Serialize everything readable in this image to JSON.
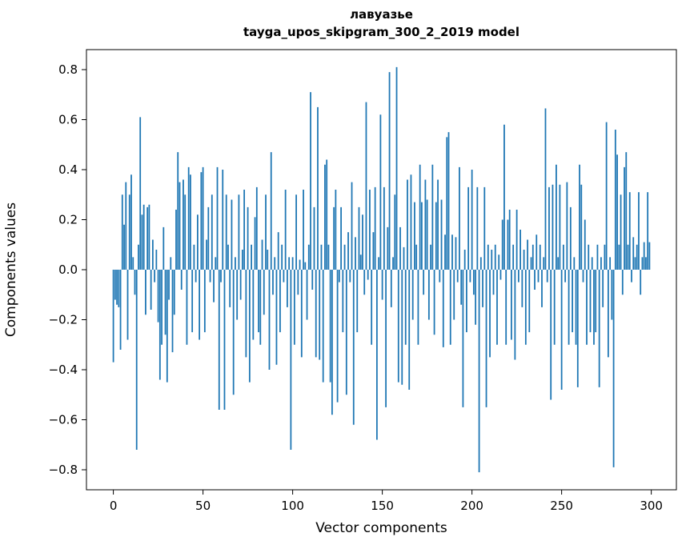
{
  "chart_data": {
    "type": "bar",
    "title": "лавуазье",
    "subtitle": "tayga_upos_skipgram_300_2_2019 model",
    "xlabel": "Vector components",
    "ylabel": "Components values",
    "bar_color": "#1f77b4",
    "grid": false,
    "legend": "none",
    "xlim": [
      -15,
      314
    ],
    "ylim": [
      -0.88,
      0.88
    ],
    "xticks": [
      0,
      50,
      100,
      150,
      200,
      250,
      300
    ],
    "yticks": [
      -0.8,
      -0.6,
      -0.4,
      -0.2,
      0.0,
      0.2,
      0.4,
      0.6,
      0.8
    ],
    "yticklabels": [
      "−0.8",
      "−0.6",
      "−0.4",
      "−0.2",
      "0.0",
      "0.2",
      "0.4",
      "0.6",
      "0.8"
    ],
    "x_is_index": true,
    "values": [
      -0.37,
      -0.12,
      -0.14,
      -0.15,
      -0.32,
      0.3,
      0.18,
      0.35,
      -0.28,
      0.3,
      0.38,
      0.05,
      -0.1,
      -0.72,
      0.1,
      0.61,
      0.22,
      0.26,
      -0.18,
      0.25,
      0.26,
      -0.16,
      0.12,
      -0.05,
      0.08,
      -0.21,
      -0.44,
      -0.3,
      0.17,
      -0.26,
      -0.45,
      -0.12,
      0.05,
      -0.33,
      -0.18,
      0.24,
      0.47,
      0.35,
      -0.08,
      0.36,
      0.3,
      -0.3,
      0.41,
      0.38,
      -0.25,
      0.1,
      -0.05,
      0.22,
      -0.28,
      0.39,
      0.41,
      -0.25,
      0.12,
      0.25,
      -0.05,
      0.3,
      -0.13,
      0.05,
      0.41,
      -0.56,
      -0.05,
      0.4,
      -0.56,
      0.3,
      0.1,
      -0.15,
      0.28,
      -0.5,
      0.05,
      -0.2,
      0.3,
      -0.12,
      0.08,
      0.32,
      -0.35,
      0.25,
      -0.45,
      0.1,
      -0.28,
      0.21,
      0.33,
      -0.25,
      -0.3,
      0.12,
      -0.18,
      0.3,
      0.08,
      -0.4,
      0.47,
      -0.1,
      0.05,
      -0.38,
      0.15,
      -0.25,
      0.1,
      -0.05,
      0.32,
      -0.15,
      0.05,
      -0.72,
      0.05,
      -0.3,
      0.3,
      -0.1,
      0.04,
      -0.35,
      0.32,
      0.03,
      -0.2,
      0.1,
      0.71,
      -0.08,
      0.25,
      -0.35,
      0.65,
      -0.36,
      0.1,
      -0.45,
      0.42,
      0.44,
      0.1,
      -0.45,
      -0.58,
      0.25,
      0.32,
      -0.53,
      -0.05,
      0.25,
      -0.25,
      0.1,
      -0.5,
      0.15,
      -0.05,
      0.35,
      -0.62,
      0.13,
      -0.25,
      0.25,
      0.06,
      0.22,
      -0.1,
      0.67,
      -0.04,
      0.32,
      -0.3,
      0.15,
      0.33,
      -0.68,
      0.05,
      0.62,
      -0.12,
      0.33,
      -0.55,
      0.17,
      0.79,
      -0.15,
      0.05,
      0.3,
      0.81,
      -0.45,
      0.17,
      -0.46,
      0.09,
      -0.3,
      0.36,
      -0.48,
      0.38,
      -0.2,
      0.27,
      0.1,
      -0.3,
      0.42,
      0.27,
      -0.1,
      0.36,
      0.28,
      -0.2,
      0.1,
      0.42,
      -0.26,
      0.27,
      0.36,
      -0.05,
      0.28,
      -0.31,
      0.14,
      0.53,
      0.55,
      -0.3,
      0.14,
      -0.2,
      0.13,
      -0.05,
      0.41,
      -0.14,
      -0.55,
      0.08,
      -0.25,
      0.33,
      -0.05,
      0.4,
      -0.1,
      -0.22,
      0.33,
      -0.81,
      0.05,
      -0.15,
      0.33,
      -0.55,
      0.1,
      -0.35,
      0.08,
      -0.1,
      0.1,
      -0.3,
      0.06,
      -0.04,
      0.2,
      0.58,
      -0.3,
      0.2,
      0.24,
      -0.28,
      0.1,
      -0.36,
      0.24,
      -0.05,
      0.16,
      -0.15,
      0.08,
      -0.3,
      0.12,
      -0.25,
      0.05,
      0.1,
      -0.08,
      0.14,
      -0.05,
      0.1,
      -0.15,
      0.05,
      0.645,
      -0.05,
      0.33,
      -0.52,
      0.34,
      -0.3,
      0.42,
      0.05,
      0.34,
      -0.48,
      0.1,
      -0.05,
      0.35,
      -0.3,
      0.25,
      -0.25,
      0.05,
      -0.3,
      -0.47,
      0.42,
      0.34,
      -0.05,
      0.2,
      -0.3,
      0.1,
      -0.25,
      0.05,
      -0.3,
      -0.25,
      0.1,
      -0.47,
      0.05,
      -0.15,
      0.1,
      0.59,
      -0.35,
      0.05,
      -0.2,
      -0.79,
      0.56,
      0.46,
      0.1,
      0.3,
      -0.1,
      0.41,
      0.47,
      0.1,
      0.31,
      -0.05,
      0.13,
      0.05,
      0.1,
      0.31,
      -0.1,
      0.05,
      0.11,
      0.05,
      0.31,
      0.11
    ]
  }
}
